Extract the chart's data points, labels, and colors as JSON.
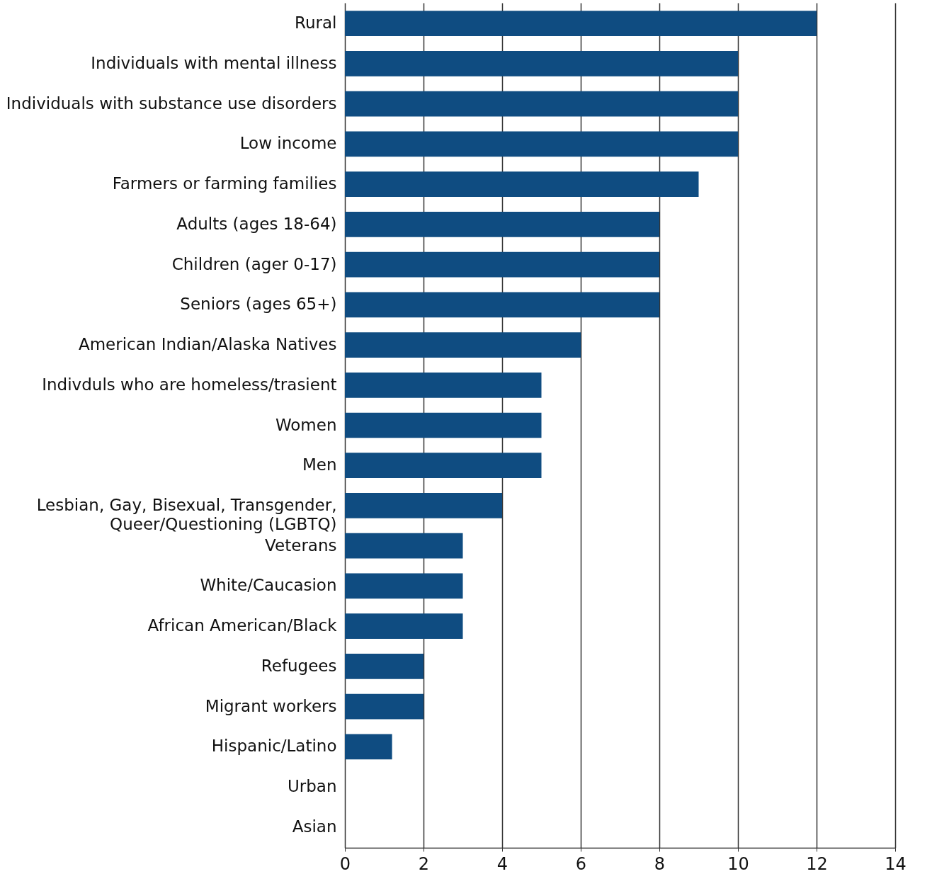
{
  "chart_data": {
    "type": "bar",
    "orientation": "horizontal",
    "categories": [
      "Rural",
      "Individuals with mental illness",
      "Individuals with substance use disorders",
      "Low income",
      "Farmers or farming families",
      "Adults (ages 18-64)",
      "Children (ager 0-17)",
      "Seniors (ages 65+)",
      "American Indian/Alaska Natives",
      "Indivduls who are homeless/trasient",
      "Women",
      "Men",
      "Lesbian, Gay, Bisexual, Transgender, Queer/Questioning (LGBTQ)",
      "Veterans",
      "White/Caucasion",
      "African American/Black",
      "Refugees",
      "Migrant workers",
      "Hispanic/Latino",
      "Urban",
      "Asian"
    ],
    "values": [
      12,
      10,
      10,
      10,
      9,
      8,
      8,
      8,
      6,
      5,
      5,
      5,
      4,
      3,
      3,
      3,
      2,
      2,
      1.2,
      0,
      0
    ],
    "color": "#0f4c81",
    "xlim": [
      0,
      14
    ],
    "xticks": [
      0,
      2,
      4,
      6,
      8,
      10,
      12,
      14
    ],
    "grid": "x"
  }
}
